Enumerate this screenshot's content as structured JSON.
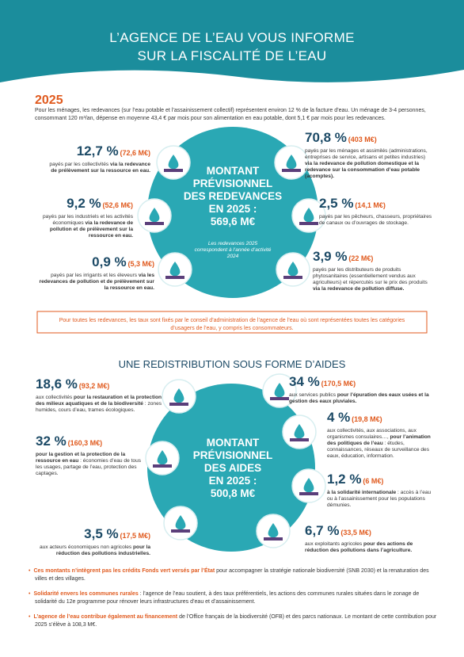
{
  "header": {
    "title_lines": [
      "L’AGENCE DE L’EAU VOUS INFORME",
      "SUR LA FISCALITÉ DE L’EAU"
    ]
  },
  "intro": {
    "year": "2025",
    "text": "Pour les ménages, les redevances (sur l’eau potable et l’assainissement collectif) représentent environ 12 % de la facture d’eau. Un ménage de 3-4 personnes, consommant 120 m³/an, dépense en moyenne 43,4 € par mois pour son alimentation en eau potable, dont 5,1 € par mois pour les redevances."
  },
  "redevances": {
    "center": {
      "lines": [
        "MONTANT",
        "PRÉVISIONNEL",
        "DES REDEVANCES",
        "EN 2025 :",
        "569,6 M€"
      ],
      "note": "Les redevances 2025 correspondent à l’année d’activité 2024"
    },
    "items": [
      {
        "pct": "12,7 %",
        "amount": "(72,6 M€)",
        "parts": [
          {
            "t": "payés par les collectivités ",
            "b": false
          },
          {
            "t": "via la redevance de prélèvement sur la ressource en eau.",
            "b": true
          }
        ]
      },
      {
        "pct": "9,2 %",
        "amount": "(52,6 M€)",
        "parts": [
          {
            "t": "payés par les industriels et les activités économiques ",
            "b": false
          },
          {
            "t": "via la redevance de pollution et de prélèvement sur la ressource en eau.",
            "b": true
          }
        ]
      },
      {
        "pct": "0,9 %",
        "amount": "(5,3 M€)",
        "parts": [
          {
            "t": "payés par les irrigants et les éleveurs ",
            "b": false
          },
          {
            "t": "via les redevances de pollution et de prélèvement sur la ressource en eau.",
            "b": true
          }
        ]
      },
      {
        "pct": "70,8 %",
        "amount": "(403 M€)",
        "parts": [
          {
            "t": "payés par les ménages et assimilés (administrations, entreprises de service, artisans et petites industries) ",
            "b": false
          },
          {
            "t": "via la redevance de pollution domestique et la redevance sur la consommation d’eau potable (acomptes).",
            "b": true
          }
        ]
      },
      {
        "pct": "2,5 %",
        "amount": "(14,1 M€)",
        "parts": [
          {
            "t": "payés par les pêcheurs, chasseurs, propriétaires de canaux ou d’ouvrages de stockage.",
            "b": false
          }
        ]
      },
      {
        "pct": "3,9 %",
        "amount": "(22 M€)",
        "parts": [
          {
            "t": "payés par les distributeurs de produits phytosanitaires (essentiellement vendus aux agriculteurs) et répercutés sur le prix des produits ",
            "b": false
          },
          {
            "t": "via la redevance de pollution diffuse.",
            "b": true
          }
        ]
      }
    ]
  },
  "notice": "Pour toutes les redevances, les taux sont fixés par le conseil d’administration de l’agence de l’eau où sont représentées toutes les catégories d’usagers de l’eau, y compris les consommateurs.",
  "aides": {
    "title": "UNE REDISTRIBUTION SOUS FORME D’AIDES",
    "center": {
      "lines": [
        "MONTANT",
        "PRÉVISIONNEL",
        "DES AIDES",
        "EN 2025 :",
        "500,8 M€"
      ]
    },
    "items": [
      {
        "pct": "18,6 %",
        "amount": "(93,2 M€)",
        "parts": [
          {
            "t": "aux collectivités ",
            "b": false
          },
          {
            "t": "pour la restauration et la protection des milieux aquatiques et de la biodiversité",
            "b": true
          },
          {
            "t": " : zones humides, cours d’eau, trames écologiques.",
            "b": false
          }
        ]
      },
      {
        "pct": "32 %",
        "amount": "(160,3 M€)",
        "parts": [
          {
            "t": "pour la gestion et la protection de la ressource en eau",
            "b": true
          },
          {
            "t": " : économies d’eau de tous les usages, partage de l’eau, protection des captages.",
            "b": false
          }
        ]
      },
      {
        "pct": "3,5 %",
        "amount": "(17,5 M€)",
        "parts": [
          {
            "t": "aux acteurs économiques non agricoles ",
            "b": false
          },
          {
            "t": "pour la réduction des pollutions industrielles.",
            "b": true
          }
        ]
      },
      {
        "pct": "34 %",
        "amount": "(170,5 M€)",
        "parts": [
          {
            "t": "aux services publics ",
            "b": false
          },
          {
            "t": "pour l’épuration des eaux usées et la gestion des eaux pluviales.",
            "b": true
          }
        ]
      },
      {
        "pct": "4 %",
        "amount": "(19,8 M€)",
        "parts": [
          {
            "t": "aux collectivités, aux associations, aux organismes consulaires…, ",
            "b": false
          },
          {
            "t": "pour l’animation des politiques de l’eau",
            "b": true
          },
          {
            "t": " : études, connaissances, réseaux de surveillance des eaux, éducation, information.",
            "b": false
          }
        ]
      },
      {
        "pct": "1,2 %",
        "amount": "(6 M€)",
        "parts": [
          {
            "t": "à la solidarité internationale",
            "b": true
          },
          {
            "t": " : accès à l’eau ou à l’assainissement pour les populations démunies.",
            "b": false
          }
        ]
      },
      {
        "pct": "6,7 %",
        "amount": "(33,5 M€)",
        "parts": [
          {
            "t": "aux exploitants agricoles ",
            "b": false
          },
          {
            "t": "pour des actions de réduction des pollutions dans l’agriculture.",
            "b": true
          }
        ]
      }
    ]
  },
  "bullets": [
    {
      "parts": [
        {
          "t": "Ces montants n’intègrent pas les crédits Fonds vert versés par l’État",
          "b": true
        },
        {
          "t": " pour accompagner la stratégie nationale biodiversité (SNB 2030) et la renaturation des villes et des villages.",
          "b": false
        }
      ]
    },
    {
      "parts": [
        {
          "t": "Solidarité envers les communes rurales",
          "b": true
        },
        {
          "t": " : l’agence de l’eau soutient, à des taux préférentiels, les actions des communes rurales situées dans le zonage de solidarité du 12e programme pour rénover leurs infrastructures d’eau et d’assainissement.",
          "b": false
        }
      ]
    },
    {
      "parts": [
        {
          "t": "L’agence de l’eau contribue également au financement",
          "b": true
        },
        {
          "t": " de l’Office français de la biodiversité (OFB) et des parcs nationaux. Le montant de cette contribution pour 2025 s’élève à 108,3 M€.",
          "b": false
        }
      ]
    }
  ]
}
